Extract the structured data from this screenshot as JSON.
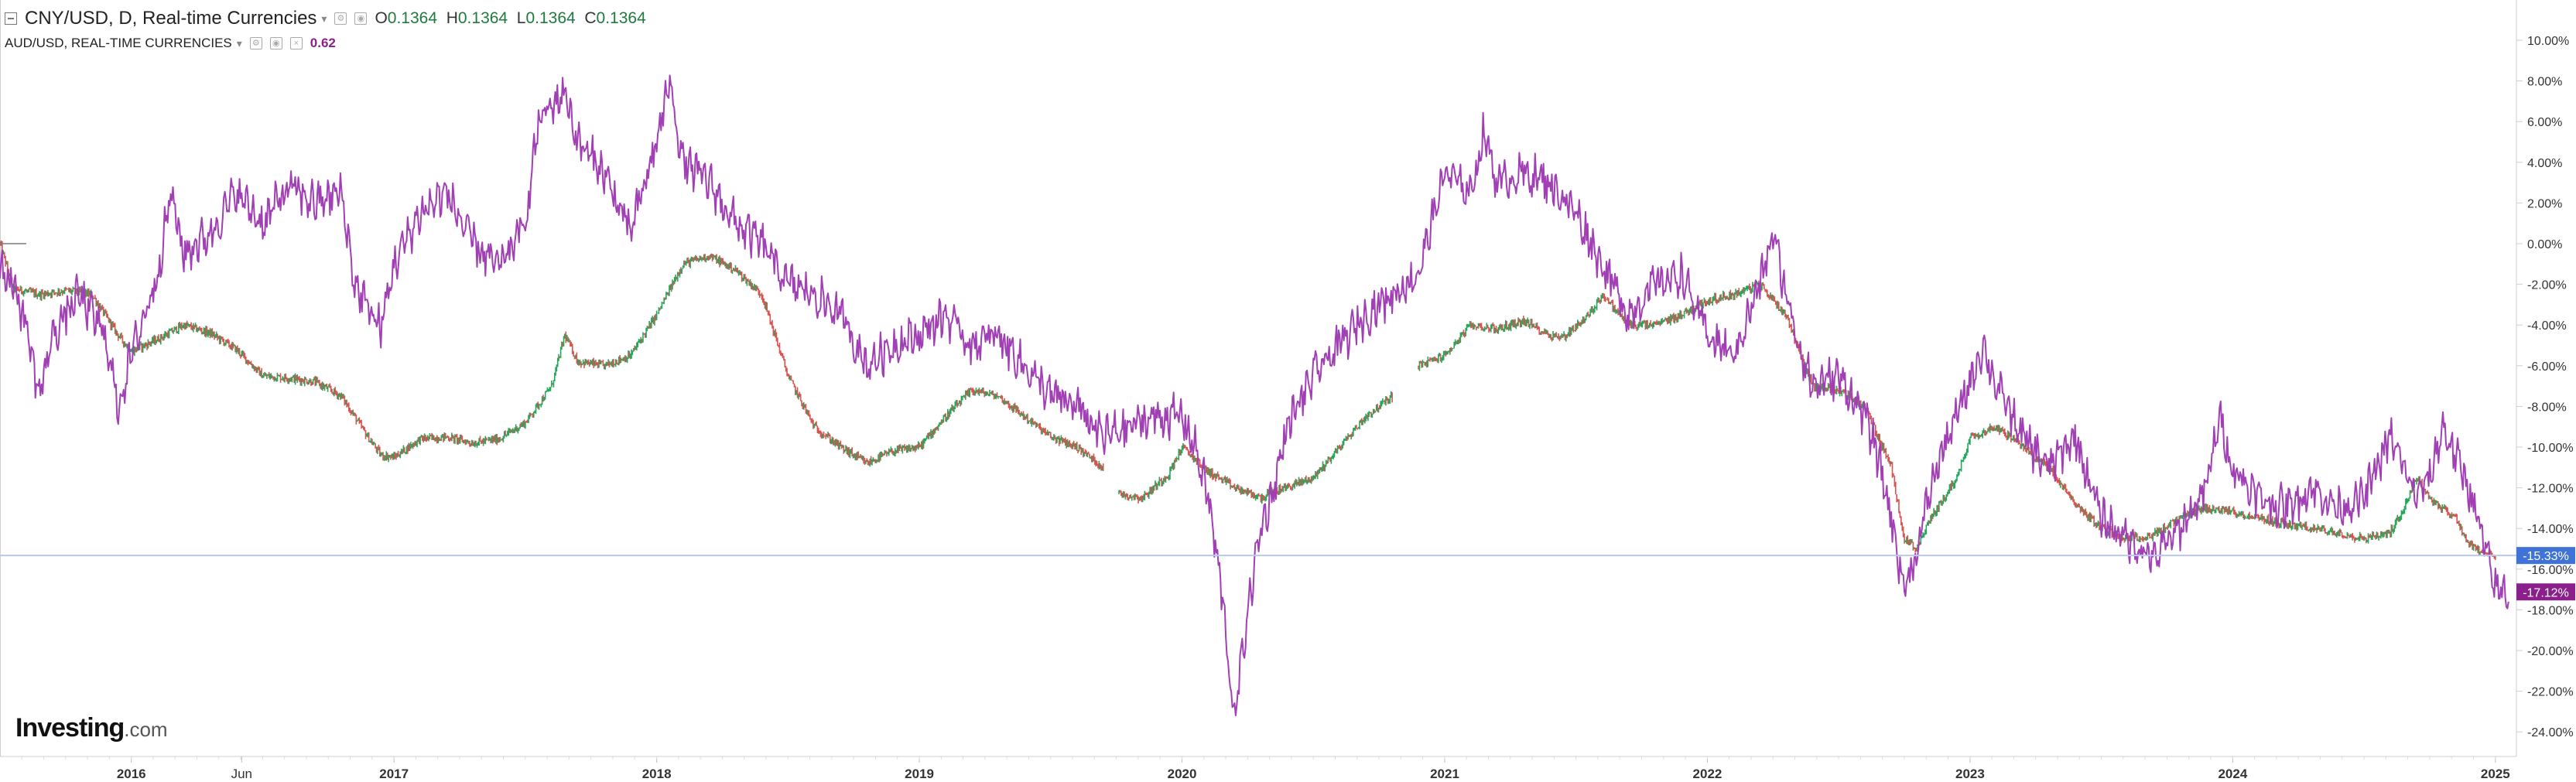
{
  "legend": {
    "main_title": "CNY/USD, D, Real-time Currencies",
    "open_label": "O",
    "open_value": "0.1364",
    "high_label": "H",
    "high_value": "0.1364",
    "low_label": "L",
    "low_value": "0.1364",
    "close_label": "C",
    "close_value": "0.1364",
    "compare_title": "AUD/USD, REAL-TIME CURRENCIES",
    "compare_value": "0.62"
  },
  "brand": {
    "name": "Investing",
    "suffix": ".com"
  },
  "colors": {
    "cny_up": "#26a65b",
    "cny_down": "#d9534f",
    "aud_line": "#a13fb5",
    "crosshair": "#b8c9ee",
    "cny_badge": "#3f73d8",
    "aud_badge": "#8b1f8b"
  },
  "chart_data": {
    "type": "line",
    "y_unit": "percent",
    "ylim": [
      -25,
      11
    ],
    "y_ticks": [
      "10.00%",
      "8.00%",
      "6.00%",
      "4.00%",
      "2.00%",
      "0.00%",
      "-2.00%",
      "-4.00%",
      "-6.00%",
      "-8.00%",
      "-10.00%",
      "-12.00%",
      "-14.00%",
      "-16.00%",
      "-18.00%",
      "-20.00%",
      "-22.00%",
      "-24.00%"
    ],
    "x_ticks": [
      "2016",
      "Jun",
      "2017",
      "2018",
      "2019",
      "2020",
      "2021",
      "2022",
      "2023",
      "2024",
      "2025"
    ],
    "series": [
      {
        "name": "CNY/USD",
        "style": "candles",
        "last_label": "-15.33%",
        "points": [
          [
            2015.5,
            0
          ],
          [
            2015.55,
            -2.2
          ],
          [
            2015.65,
            -2.5
          ],
          [
            2015.75,
            -2.3
          ],
          [
            2015.85,
            -2.5
          ],
          [
            2015.95,
            -4.5
          ],
          [
            2016.0,
            -5.3
          ],
          [
            2016.1,
            -4.7
          ],
          [
            2016.2,
            -4.0
          ],
          [
            2016.3,
            -4.4
          ],
          [
            2016.4,
            -5.2
          ],
          [
            2016.5,
            -6.5
          ],
          [
            2016.6,
            -6.6
          ],
          [
            2016.7,
            -6.8
          ],
          [
            2016.8,
            -7.5
          ],
          [
            2016.9,
            -9.5
          ],
          [
            2016.95,
            -10.4
          ],
          [
            2017.0,
            -10.5
          ],
          [
            2017.1,
            -9.6
          ],
          [
            2017.2,
            -9.5
          ],
          [
            2017.3,
            -9.8
          ],
          [
            2017.4,
            -9.6
          ],
          [
            2017.5,
            -8.8
          ],
          [
            2017.6,
            -7.0
          ],
          [
            2017.65,
            -4.5
          ],
          [
            2017.7,
            -5.8
          ],
          [
            2017.8,
            -6.0
          ],
          [
            2017.9,
            -5.5
          ],
          [
            2018.0,
            -3.5
          ],
          [
            2018.1,
            -1.0
          ],
          [
            2018.2,
            -0.6
          ],
          [
            2018.3,
            -1.3
          ],
          [
            2018.4,
            -2.5
          ],
          [
            2018.5,
            -6.5
          ],
          [
            2018.6,
            -9.0
          ],
          [
            2018.7,
            -10.0
          ],
          [
            2018.8,
            -10.8
          ],
          [
            2018.9,
            -10.2
          ],
          [
            2019.0,
            -10.0
          ],
          [
            2019.1,
            -8.5
          ],
          [
            2019.2,
            -7.2
          ],
          [
            2019.3,
            -7.5
          ],
          [
            2019.4,
            -8.5
          ],
          [
            2019.5,
            -9.5
          ],
          [
            2019.6,
            -10.0
          ],
          [
            2019.7,
            -11.0
          ],
          [
            2019.72,
            null
          ],
          [
            2019.76,
            -12.3
          ],
          [
            2019.85,
            -12.5
          ],
          [
            2019.95,
            -11.3
          ],
          [
            2020.0,
            -10.0
          ],
          [
            2020.1,
            -11.2
          ],
          [
            2020.2,
            -12.0
          ],
          [
            2020.3,
            -12.5
          ],
          [
            2020.35,
            -12.2
          ],
          [
            2020.5,
            -11.5
          ],
          [
            2020.6,
            -10.0
          ],
          [
            2020.7,
            -8.5
          ],
          [
            2020.8,
            -7.5
          ],
          [
            2020.82,
            null
          ],
          [
            2020.9,
            -6.0
          ],
          [
            2021.0,
            -5.5
          ],
          [
            2021.1,
            -4.0
          ],
          [
            2021.2,
            -4.2
          ],
          [
            2021.3,
            -3.8
          ],
          [
            2021.4,
            -4.5
          ],
          [
            2021.45,
            -4.6
          ],
          [
            2021.55,
            -3.5
          ],
          [
            2021.6,
            -2.5
          ],
          [
            2021.7,
            -4.0
          ],
          [
            2021.8,
            -4.0
          ],
          [
            2021.9,
            -3.5
          ],
          [
            2022.0,
            -2.8
          ],
          [
            2022.1,
            -2.5
          ],
          [
            2022.2,
            -2.0
          ],
          [
            2022.3,
            -3.5
          ],
          [
            2022.4,
            -7.0
          ],
          [
            2022.5,
            -7.2
          ],
          [
            2022.6,
            -8.0
          ],
          [
            2022.7,
            -11.0
          ],
          [
            2022.75,
            -14.5
          ],
          [
            2022.8,
            -15.0
          ],
          [
            2022.85,
            -13.5
          ],
          [
            2022.95,
            -11.5
          ],
          [
            2023.0,
            -9.5
          ],
          [
            2023.1,
            -9.0
          ],
          [
            2023.2,
            -10.0
          ],
          [
            2023.3,
            -11.0
          ],
          [
            2023.4,
            -12.8
          ],
          [
            2023.5,
            -14.0
          ],
          [
            2023.6,
            -14.5
          ],
          [
            2023.7,
            -14.3
          ],
          [
            2023.8,
            -13.5
          ],
          [
            2023.9,
            -13.0
          ],
          [
            2024.0,
            -13.2
          ],
          [
            2024.2,
            -13.8
          ],
          [
            2024.4,
            -14.2
          ],
          [
            2024.5,
            -14.5
          ],
          [
            2024.6,
            -14.2
          ],
          [
            2024.65,
            -13.0
          ],
          [
            2024.7,
            -11.5
          ],
          [
            2024.75,
            -12.5
          ],
          [
            2024.85,
            -13.5
          ],
          [
            2024.9,
            -14.8
          ],
          [
            2024.95,
            -15.2
          ],
          [
            2025.0,
            -15.33
          ]
        ]
      },
      {
        "name": "AUD/USD",
        "style": "line",
        "last_label": "-17.12%",
        "points": [
          [
            2015.5,
            -1.0
          ],
          [
            2015.55,
            -2.0
          ],
          [
            2015.6,
            -4.0
          ],
          [
            2015.65,
            -7.5
          ],
          [
            2015.7,
            -4.5
          ],
          [
            2015.8,
            -2.5
          ],
          [
            2015.9,
            -4.5
          ],
          [
            2015.95,
            -8.0
          ],
          [
            2016.0,
            -5.5
          ],
          [
            2016.1,
            -1.5
          ],
          [
            2016.15,
            2.5
          ],
          [
            2016.2,
            -0.5
          ],
          [
            2016.3,
            0.5
          ],
          [
            2016.4,
            2.5
          ],
          [
            2016.5,
            1.0
          ],
          [
            2016.6,
            2.8
          ],
          [
            2016.7,
            2.0
          ],
          [
            2016.8,
            2.5
          ],
          [
            2016.85,
            -2.0
          ],
          [
            2016.95,
            -4.2
          ],
          [
            2017.0,
            -1.0
          ],
          [
            2017.1,
            1.5
          ],
          [
            2017.2,
            2.5
          ],
          [
            2017.3,
            0.0
          ],
          [
            2017.4,
            -1.2
          ],
          [
            2017.5,
            1.0
          ],
          [
            2017.55,
            6.0
          ],
          [
            2017.65,
            7.5
          ],
          [
            2017.7,
            5.0
          ],
          [
            2017.8,
            3.5
          ],
          [
            2017.9,
            0.5
          ],
          [
            2018.0,
            5.0
          ],
          [
            2018.05,
            8.0
          ],
          [
            2018.1,
            4.0
          ],
          [
            2018.2,
            3.0
          ],
          [
            2018.3,
            1.0
          ],
          [
            2018.4,
            0.0
          ],
          [
            2018.5,
            -2.0
          ],
          [
            2018.6,
            -2.5
          ],
          [
            2018.7,
            -3.5
          ],
          [
            2018.8,
            -6.0
          ],
          [
            2018.9,
            -5.0
          ],
          [
            2019.0,
            -4.5
          ],
          [
            2019.1,
            -3.5
          ],
          [
            2019.2,
            -5.0
          ],
          [
            2019.3,
            -4.5
          ],
          [
            2019.4,
            -6.0
          ],
          [
            2019.5,
            -7.5
          ],
          [
            2019.6,
            -8.0
          ],
          [
            2019.7,
            -9.5
          ],
          [
            2019.8,
            -9.0
          ],
          [
            2019.9,
            -8.5
          ],
          [
            2020.0,
            -8.5
          ],
          [
            2020.05,
            -10.0
          ],
          [
            2020.1,
            -12.5
          ],
          [
            2020.15,
            -17.0
          ],
          [
            2020.2,
            -23.5
          ],
          [
            2020.25,
            -18.0
          ],
          [
            2020.3,
            -14.0
          ],
          [
            2020.35,
            -12.0
          ],
          [
            2020.4,
            -9.0
          ],
          [
            2020.5,
            -6.5
          ],
          [
            2020.6,
            -5.0
          ],
          [
            2020.7,
            -3.5
          ],
          [
            2020.8,
            -2.5
          ],
          [
            2020.9,
            -1.5
          ],
          [
            2021.0,
            3.5
          ],
          [
            2021.1,
            2.5
          ],
          [
            2021.15,
            5.5
          ],
          [
            2021.2,
            3.0
          ],
          [
            2021.3,
            3.5
          ],
          [
            2021.4,
            3.0
          ],
          [
            2021.5,
            1.5
          ],
          [
            2021.6,
            -1.0
          ],
          [
            2021.7,
            -3.5
          ],
          [
            2021.8,
            -2.0
          ],
          [
            2021.9,
            -1.5
          ],
          [
            2022.0,
            -4.5
          ],
          [
            2022.1,
            -5.5
          ],
          [
            2022.2,
            -2.0
          ],
          [
            2022.25,
            0.5
          ],
          [
            2022.3,
            -2.5
          ],
          [
            2022.35,
            -5.0
          ],
          [
            2022.4,
            -7.0
          ],
          [
            2022.5,
            -6.5
          ],
          [
            2022.6,
            -8.5
          ],
          [
            2022.65,
            -10.5
          ],
          [
            2022.7,
            -13.5
          ],
          [
            2022.75,
            -17.0
          ],
          [
            2022.8,
            -15.0
          ],
          [
            2022.85,
            -12.0
          ],
          [
            2022.9,
            -10.0
          ],
          [
            2022.95,
            -8.5
          ],
          [
            2023.05,
            -5.0
          ],
          [
            2023.1,
            -7.0
          ],
          [
            2023.2,
            -9.5
          ],
          [
            2023.3,
            -11.0
          ],
          [
            2023.4,
            -9.5
          ],
          [
            2023.45,
            -11.5
          ],
          [
            2023.5,
            -13.5
          ],
          [
            2023.6,
            -14.5
          ],
          [
            2023.7,
            -15.5
          ],
          [
            2023.8,
            -14.0
          ],
          [
            2023.9,
            -12.0
          ],
          [
            2023.95,
            -8.5
          ],
          [
            2024.0,
            -11.0
          ],
          [
            2024.1,
            -12.5
          ],
          [
            2024.2,
            -13.0
          ],
          [
            2024.3,
            -12.0
          ],
          [
            2024.4,
            -13.0
          ],
          [
            2024.5,
            -12.5
          ],
          [
            2024.6,
            -9.5
          ],
          [
            2024.7,
            -12.5
          ],
          [
            2024.75,
            -11.5
          ],
          [
            2024.8,
            -9.0
          ],
          [
            2024.9,
            -12.0
          ],
          [
            2024.95,
            -14.5
          ],
          [
            2025.0,
            -17.0
          ],
          [
            2025.05,
            -17.12
          ]
        ]
      }
    ]
  }
}
